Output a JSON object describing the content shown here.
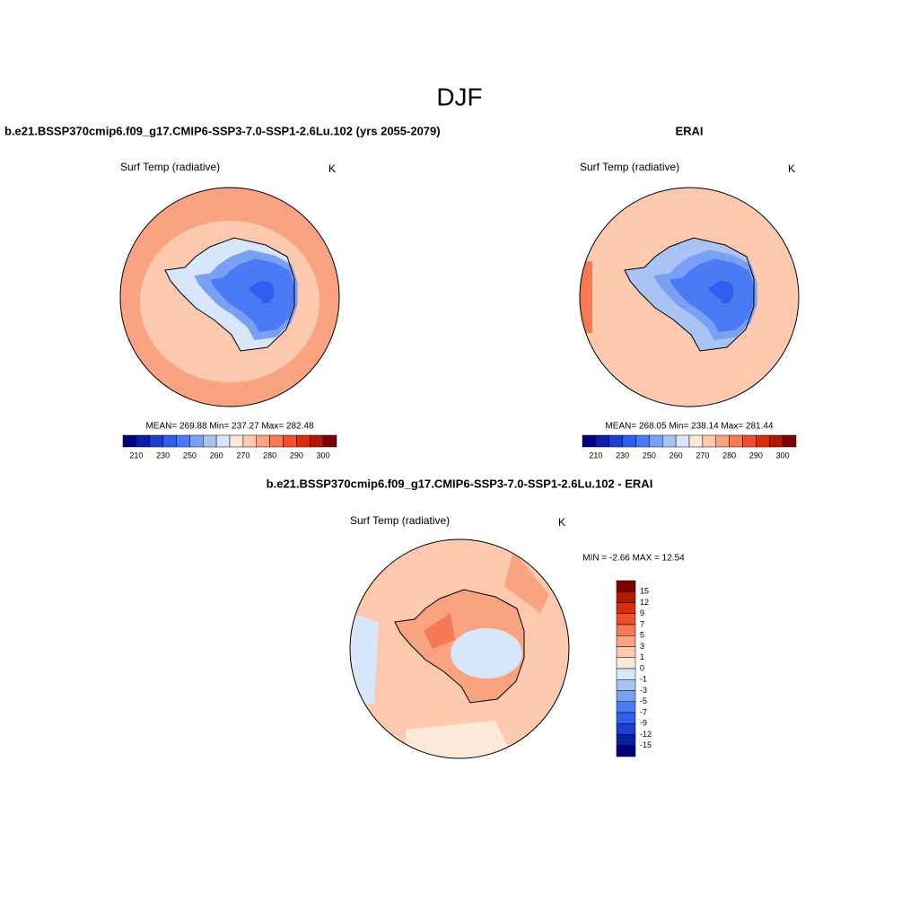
{
  "title": "DJF",
  "panels": [
    {
      "title": "b.e21.BSSP370cmip6.f09_g17.CMIP6-SSP3-7.0-SSP1-2.6Lu.102 (yrs 2055-2079)",
      "variable": "Surf Temp (radiative)",
      "units": "K",
      "stats": "MEAN= 269.88  Min= 237.27  Max= 282.48",
      "colorbar_labels": [
        "210",
        "230",
        "250",
        "260",
        "270",
        "280",
        "290",
        "300"
      ]
    },
    {
      "title": "ERAI",
      "variable": "Surf Temp (radiative)",
      "units": "K",
      "stats": "MEAN= 268.05  Min= 238.14  Max= 281.44",
      "colorbar_labels": [
        "210",
        "230",
        "250",
        "260",
        "270",
        "280",
        "290",
        "300"
      ]
    },
    {
      "title": "b.e21.BSSP370cmip6.f09_g17.CMIP6-SSP3-7.0-SSP1-2.6Lu.102 - ERAI",
      "variable": "Surf Temp (radiative)",
      "units": "K",
      "stats": "MIN =  -2.66 MAX =  12.54",
      "colorbar_labels": [
        "15",
        "12",
        "9",
        "7",
        "5",
        "3",
        "1",
        "0",
        "-1",
        "-3",
        "-5",
        "-7",
        "-9",
        "-12",
        "-15"
      ]
    }
  ]
}
